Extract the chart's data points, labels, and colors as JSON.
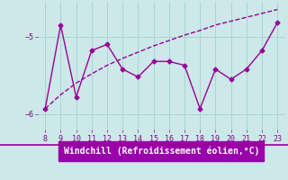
{
  "x": [
    8,
    9,
    10,
    11,
    12,
    13,
    14,
    15,
    16,
    17,
    18,
    19,
    20,
    21,
    22,
    23
  ],
  "y_main": [
    -5.93,
    -4.85,
    -5.78,
    -5.18,
    -5.1,
    -5.42,
    -5.52,
    -5.32,
    -5.32,
    -5.37,
    -5.93,
    -5.42,
    -5.55,
    -5.42,
    -5.18,
    -4.82
  ],
  "y_trend": [
    -5.93,
    -5.75,
    -5.6,
    -5.48,
    -5.37,
    -5.28,
    -5.2,
    -5.12,
    -5.05,
    -4.98,
    -4.92,
    -4.85,
    -4.8,
    -4.75,
    -4.7,
    -4.65
  ],
  "line_color": "#990099",
  "bg_color": "#cce8e8",
  "xlabel": "Windchill (Refroidissement éolien,°C)",
  "xlabel_bg": "#9900aa",
  "xlim": [
    7.5,
    23.5
  ],
  "ylim": [
    -6.2,
    -4.55
  ],
  "yticks": [
    -6.0,
    -5.0
  ],
  "xticks": [
    8,
    9,
    10,
    11,
    12,
    13,
    14,
    15,
    16,
    17,
    18,
    19,
    20,
    21,
    22,
    23
  ],
  "grid_color": "#aad4d4",
  "marker": "D",
  "markersize": 2.5,
  "linewidth": 1.0,
  "tick_color": "#880088",
  "tick_fontsize": 6,
  "xlabel_fontsize": 7
}
